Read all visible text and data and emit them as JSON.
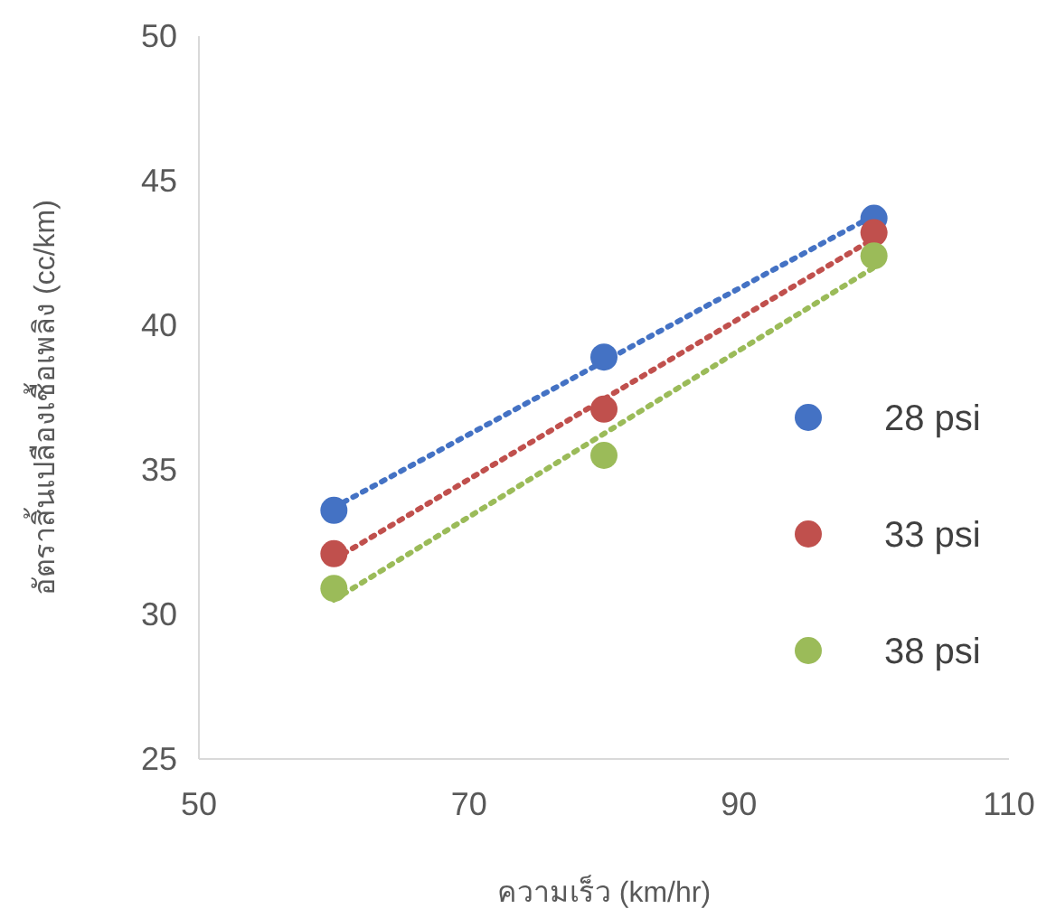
{
  "chart_data": {
    "type": "scatter",
    "xlabel": "ความเร็ว (km/hr)",
    "ylabel": "อัตราสิ้นเปลืองเชื้อเพลิง (cc/km)",
    "xlim": [
      50,
      110
    ],
    "ylim": [
      25,
      50
    ],
    "xticks": [
      50,
      70,
      90,
      110
    ],
    "yticks": [
      25,
      30,
      35,
      40,
      45,
      50
    ],
    "marker": "circle",
    "legend": "right",
    "series": [
      {
        "name": "28 psi",
        "color": "#4472c4",
        "x": [
          60,
          80,
          100
        ],
        "values": [
          33.6,
          38.9,
          43.7
        ]
      },
      {
        "name": "33 psi",
        "color": "#c0504d",
        "x": [
          60,
          80,
          100
        ],
        "values": [
          32.1,
          37.1,
          43.2
        ]
      },
      {
        "name": "38 psi",
        "color": "#9bbb59",
        "x": [
          60,
          80,
          100
        ],
        "values": [
          30.9,
          35.5,
          42.4
        ]
      },
      {
        "type": "line",
        "marker": "none",
        "line_style": "dotted",
        "color": "#4472c4",
        "x": [
          60,
          100
        ],
        "values": [
          33.7,
          43.8
        ]
      },
      {
        "type": "line",
        "marker": "none",
        "line_style": "dotted",
        "color": "#c0504d",
        "x": [
          60,
          100
        ],
        "values": [
          31.9,
          43.0
        ]
      },
      {
        "type": "line",
        "marker": "none",
        "line_style": "dotted",
        "color": "#9bbb59",
        "x": [
          60,
          100
        ],
        "values": [
          30.5,
          42.0
        ]
      }
    ]
  }
}
